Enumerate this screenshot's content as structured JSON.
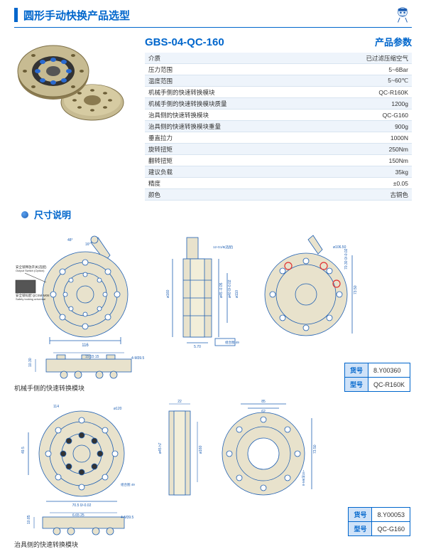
{
  "header": {
    "title": "圆形手动快换产品选型"
  },
  "product": {
    "code": "GBS-04-QC-160",
    "param_label": "产品参数"
  },
  "params": [
    {
      "k": "介质",
      "v": "已过滤压缩空气"
    },
    {
      "k": "压力范围",
      "v": "5~6Bar"
    },
    {
      "k": "温度范围",
      "v": "5~60℃"
    },
    {
      "k": "机械手侧的快速转换模块",
      "v": "QC-R160K"
    },
    {
      "k": "机械手侧的快速转换模块质量",
      "v": "1200g"
    },
    {
      "k": "治具侧的快速转换模块",
      "v": "QC-G160"
    },
    {
      "k": "治具侧的快速转换模块重量",
      "v": "900g"
    },
    {
      "k": "垂直拉力",
      "v": "1000N"
    },
    {
      "k": "旋转扭矩",
      "v": "250Nm"
    },
    {
      "k": "翻转扭矩",
      "v": "150Nm"
    },
    {
      "k": "建议负载",
      "v": "35kg"
    },
    {
      "k": "精度",
      "v": "±0.05"
    },
    {
      "k": "颜色",
      "v": "古铜色"
    }
  ],
  "dimensions": {
    "title": "尺寸说明"
  },
  "captions": {
    "upper": "机械手侧的快速转换模块",
    "lower": "治具侧的快速转换模块"
  },
  "code_labels": {
    "huohao": "货号",
    "xinghao": "型号"
  },
  "codes_upper": {
    "huohao": "8.Y00360",
    "xinghao": "QC-R160K"
  },
  "codes_lower": {
    "huohao": "8.Y00053",
    "xinghao": "QC-G160"
  },
  "colors": {
    "accent": "#0066cc",
    "row_alt": "#eef4fb",
    "code_bg": "#cfe2f8",
    "bronze": "#b8a67a",
    "bronze_dark": "#8a7a50",
    "blue_ball": "#2a6ad0",
    "line": "#1e5fb3"
  }
}
